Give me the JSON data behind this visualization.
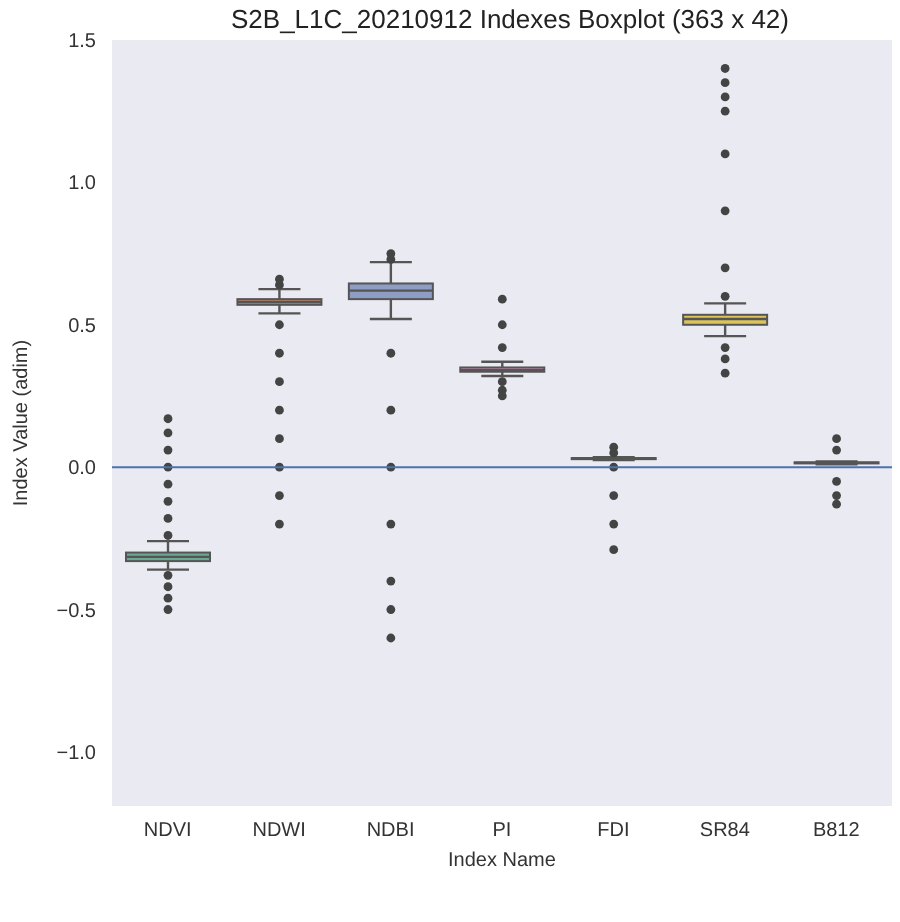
{
  "chart_data": {
    "type": "box",
    "title": "S2B_L1C_20210912 Indexes Boxplot (363 x 42)",
    "xlabel": "Index Name",
    "ylabel": "Index Value (adim)",
    "categories": [
      "NDVI",
      "NDWI",
      "NDBI",
      "PI",
      "FDI",
      "SR84",
      "B812"
    ],
    "colors": [
      "#6aa893",
      "#c98a6e",
      "#8d9dc4",
      "#c88fb4",
      "#9bbd63",
      "#dcc45b",
      "#c8b392"
    ],
    "boxes": [
      {
        "low": -0.36,
        "q1": -0.33,
        "median": -0.315,
        "q3": -0.3,
        "high": -0.26,
        "outliers": [
          0.17,
          0.12,
          0.06,
          0.0,
          -0.06,
          -0.12,
          -0.18,
          -0.24,
          -0.38,
          -0.42,
          -0.46,
          -0.5
        ]
      },
      {
        "low": 0.54,
        "q1": 0.57,
        "median": 0.58,
        "q3": 0.59,
        "high": 0.625,
        "outliers": [
          0.66,
          0.64,
          0.5,
          0.4,
          0.3,
          0.2,
          0.1,
          0.0,
          -0.1,
          -0.2
        ]
      },
      {
        "low": 0.52,
        "q1": 0.59,
        "median": 0.62,
        "q3": 0.645,
        "high": 0.72,
        "outliers": [
          0.75,
          0.73,
          0.4,
          0.2,
          0.0,
          -0.2,
          -0.4,
          -0.5,
          -0.6
        ]
      },
      {
        "low": 0.32,
        "q1": 0.335,
        "median": 0.34,
        "q3": 0.35,
        "high": 0.37,
        "outliers": [
          0.59,
          0.5,
          0.42,
          0.3,
          0.27,
          0.25
        ]
      },
      {
        "low": 0.025,
        "q1": 0.028,
        "median": 0.03,
        "q3": 0.032,
        "high": 0.035,
        "outliers": [
          0.07,
          0.05,
          0.0,
          -0.1,
          -0.2,
          -0.29
        ]
      },
      {
        "low": 0.46,
        "q1": 0.5,
        "median": 0.52,
        "q3": 0.535,
        "high": 0.575,
        "outliers": [
          1.4,
          1.35,
          1.3,
          1.25,
          1.1,
          0.9,
          0.7,
          0.6,
          0.42,
          0.38,
          0.33
        ]
      },
      {
        "low": 0.01,
        "q1": 0.013,
        "median": 0.015,
        "q3": 0.017,
        "high": 0.02,
        "outliers": [
          0.1,
          0.06,
          -0.05,
          -0.1,
          -0.13
        ]
      }
    ],
    "ylim": [
      -1.19,
      1.5
    ],
    "yticks": [
      {
        "value": -1,
        "label": "−1.0"
      },
      {
        "value": -0.5,
        "label": "−0.5"
      },
      {
        "value": 0,
        "label": "0.0"
      },
      {
        "value": 0.5,
        "label": "0.5"
      },
      {
        "value": 1,
        "label": "1.0"
      },
      {
        "value": 1.5,
        "label": "1.5"
      }
    ],
    "ref_lines": [
      {
        "axis": "y",
        "value": 0,
        "color": "#4c72b0"
      }
    ]
  }
}
